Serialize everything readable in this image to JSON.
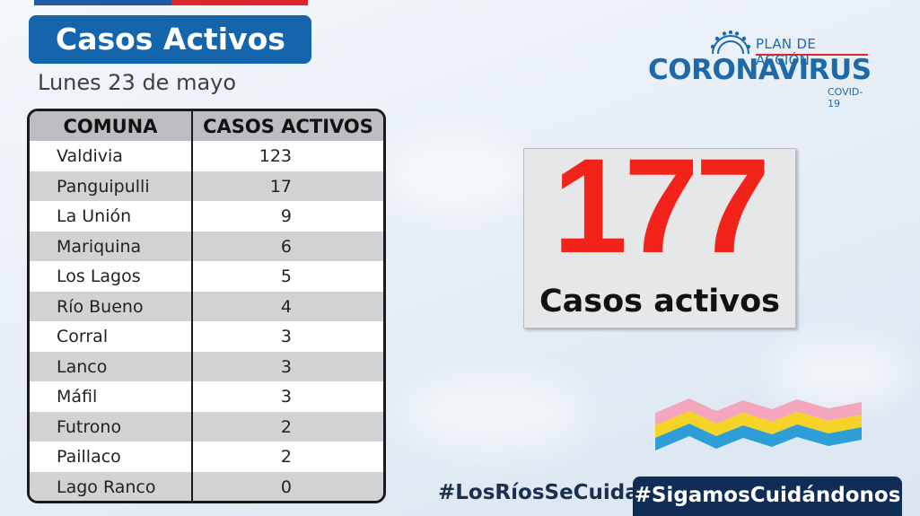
{
  "header": {
    "title": "Casos Activos",
    "date": "Lunes 23 de mayo"
  },
  "table": {
    "headers": [
      "COMUNA",
      "CASOS ACTIVOS"
    ],
    "rows": [
      {
        "comuna": "Valdivia",
        "casos": "123"
      },
      {
        "comuna": "Panguipulli",
        "casos": "17"
      },
      {
        "comuna": "La Unión",
        "casos": "9"
      },
      {
        "comuna": "Mariquina",
        "casos": "6"
      },
      {
        "comuna": "Los Lagos",
        "casos": "5"
      },
      {
        "comuna": "Río Bueno",
        "casos": "4"
      },
      {
        "comuna": "Corral",
        "casos": "3"
      },
      {
        "comuna": "Lanco",
        "casos": "3"
      },
      {
        "comuna": "Máfil",
        "casos": "3"
      },
      {
        "comuna": "Futrono",
        "casos": "2"
      },
      {
        "comuna": "Paillaco",
        "casos": "2"
      },
      {
        "comuna": "Lago Ranco",
        "casos": "0"
      }
    ]
  },
  "logo": {
    "plan": "PLAN DE ACCIÓN",
    "name": "CORONAVIRUS",
    "sub": "COVID-19",
    "icon": "virus-icon"
  },
  "summary": {
    "total": "177",
    "label": "Casos activos"
  },
  "decoration": {
    "icon": "wave-stripes-icon",
    "colors": [
      "#f4a6bd",
      "#f5d327",
      "#2e9fd6"
    ]
  },
  "hashtags": {
    "left": "#LosRíosSeCuida",
    "right": "#SigamosCuidándonos"
  },
  "colors": {
    "title_bg": "#1565ad",
    "number": "#f2231a",
    "hashtag_bg": "#0f2d57",
    "brand_blue": "#1e6aa8",
    "flag_red": "#e0262b"
  }
}
